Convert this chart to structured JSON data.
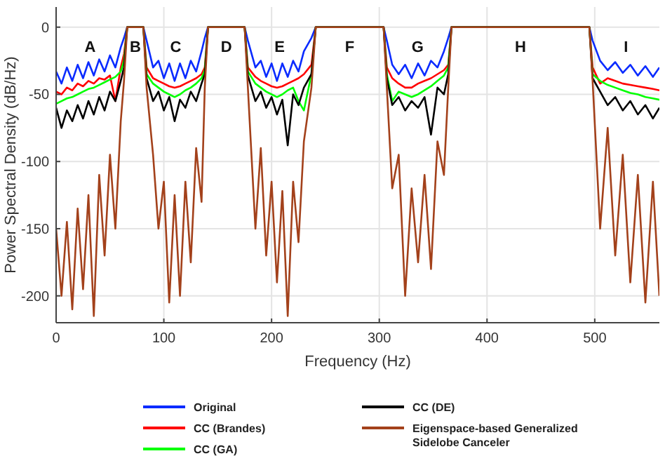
{
  "chart_data": {
    "type": "line",
    "xlabel": "Frequency (Hz)",
    "ylabel": "Power Spectral Density (dB/Hz)",
    "x": [
      0,
      5,
      10,
      15,
      20,
      25,
      30,
      35,
      40,
      45,
      50,
      55,
      60,
      63,
      66,
      70,
      78,
      81,
      84,
      90,
      95,
      100,
      105,
      110,
      115,
      120,
      125,
      130,
      135,
      138,
      141,
      150,
      165,
      175,
      178,
      185,
      190,
      195,
      200,
      205,
      210,
      215,
      220,
      225,
      230,
      237,
      241,
      270,
      304,
      307,
      312,
      318,
      324,
      330,
      336,
      342,
      348,
      354,
      360,
      364,
      367,
      430,
      495,
      498,
      505,
      512,
      519,
      526,
      533,
      540,
      547,
      554,
      560
    ],
    "series": [
      {
        "name": "Original",
        "color": "#0a2bff",
        "values": [
          -33,
          -42,
          -30,
          -40,
          -28,
          -38,
          -26,
          -36,
          -24,
          -33,
          -21,
          -30,
          -15,
          -8,
          0,
          0,
          0,
          0,
          -10,
          -30,
          -25,
          -38,
          -27,
          -40,
          -27,
          -38,
          -25,
          -33,
          -18,
          -8,
          0,
          0,
          0,
          0,
          -10,
          -30,
          -25,
          -37,
          -27,
          -40,
          -27,
          -37,
          -25,
          -33,
          -18,
          -8,
          0,
          0,
          0,
          -10,
          -28,
          -35,
          -28,
          -38,
          -27,
          -36,
          -25,
          -30,
          -18,
          -8,
          0,
          0,
          0,
          -10,
          -25,
          -32,
          -26,
          -34,
          -28,
          -36,
          -29,
          -37,
          -30
        ]
      },
      {
        "name": "CC (Brandes)",
        "color": "#ff0000",
        "values": [
          -48,
          -50,
          -45,
          -47,
          -42,
          -44,
          -40,
          -42,
          -38,
          -39,
          -36,
          -55,
          -30,
          -20,
          0,
          0,
          0,
          0,
          -30,
          -38,
          -40,
          -42,
          -44,
          -45,
          -44,
          -42,
          -40,
          -38,
          -35,
          -30,
          0,
          0,
          0,
          0,
          -30,
          -37,
          -40,
          -42,
          -44,
          -45,
          -44,
          -42,
          -40,
          -38,
          -35,
          -28,
          0,
          0,
          0,
          -30,
          -38,
          -42,
          -45,
          -45,
          -42,
          -40,
          -38,
          -35,
          -32,
          -28,
          0,
          0,
          0,
          -30,
          -42,
          -38,
          -40,
          -42,
          -43,
          -44,
          -45,
          -46,
          -47
        ]
      },
      {
        "name": "CC (GA)",
        "color": "#00ff00",
        "values": [
          -57,
          -55,
          -53,
          -52,
          -50,
          -48,
          -46,
          -45,
          -43,
          -41,
          -39,
          -37,
          -33,
          -25,
          0,
          0,
          0,
          0,
          -35,
          -42,
          -45,
          -48,
          -50,
          -52,
          -50,
          -47,
          -45,
          -42,
          -38,
          -32,
          0,
          0,
          0,
          0,
          -33,
          -42,
          -45,
          -48,
          -50,
          -52,
          -50,
          -47,
          -45,
          -55,
          -62,
          -35,
          0,
          0,
          0,
          -35,
          -55,
          -48,
          -50,
          -52,
          -50,
          -47,
          -44,
          -40,
          -36,
          -30,
          0,
          0,
          0,
          -35,
          -40,
          -43,
          -45,
          -47,
          -49,
          -50,
          -52,
          -53,
          -54
        ]
      },
      {
        "name": "CC (DE)",
        "color": "#000000",
        "values": [
          -60,
          -75,
          -62,
          -70,
          -58,
          -68,
          -55,
          -65,
          -52,
          -62,
          -48,
          -55,
          -40,
          -30,
          0,
          0,
          0,
          0,
          -38,
          -55,
          -48,
          -62,
          -52,
          -70,
          -54,
          -60,
          -48,
          -55,
          -42,
          -35,
          0,
          0,
          0,
          0,
          -36,
          -55,
          -48,
          -60,
          -52,
          -65,
          -54,
          -88,
          -50,
          -58,
          -45,
          -35,
          0,
          0,
          0,
          -38,
          -58,
          -52,
          -62,
          -55,
          -60,
          -52,
          -80,
          -45,
          -50,
          -35,
          0,
          0,
          0,
          -38,
          -48,
          -58,
          -52,
          -62,
          -55,
          -65,
          -58,
          -68,
          -60
        ]
      },
      {
        "name": "Eigenspace-based Generalized Sidelobe Canceler",
        "color": "#a3411b",
        "values": [
          -150,
          -200,
          -145,
          -210,
          -135,
          -195,
          -125,
          -215,
          -110,
          -170,
          -95,
          -150,
          -70,
          -40,
          0,
          0,
          0,
          0,
          -45,
          -95,
          -150,
          -115,
          -205,
          -125,
          -200,
          -115,
          -175,
          -90,
          -130,
          -45,
          0,
          0,
          0,
          0,
          -45,
          -150,
          -90,
          -170,
          -115,
          -190,
          -122,
          -215,
          -115,
          -160,
          -85,
          -45,
          0,
          0,
          0,
          -45,
          -120,
          -95,
          -200,
          -120,
          -175,
          -110,
          -180,
          -85,
          -110,
          -45,
          0,
          0,
          0,
          -40,
          -150,
          -75,
          -170,
          -95,
          -190,
          -110,
          -205,
          -115,
          -200
        ]
      }
    ],
    "xlim": [
      0,
      560
    ],
    "ylim": [
      -220,
      15
    ],
    "xticks": [
      0,
      100,
      200,
      300,
      400,
      500
    ],
    "yticks": [
      0,
      -50,
      -100,
      -150,
      -200
    ],
    "grid": true,
    "legend": "bottom",
    "line_style": "solid",
    "marker": "none",
    "annotations": [
      "A",
      "B",
      "C",
      "D",
      "E",
      "F",
      "G",
      "H",
      "I"
    ]
  }
}
